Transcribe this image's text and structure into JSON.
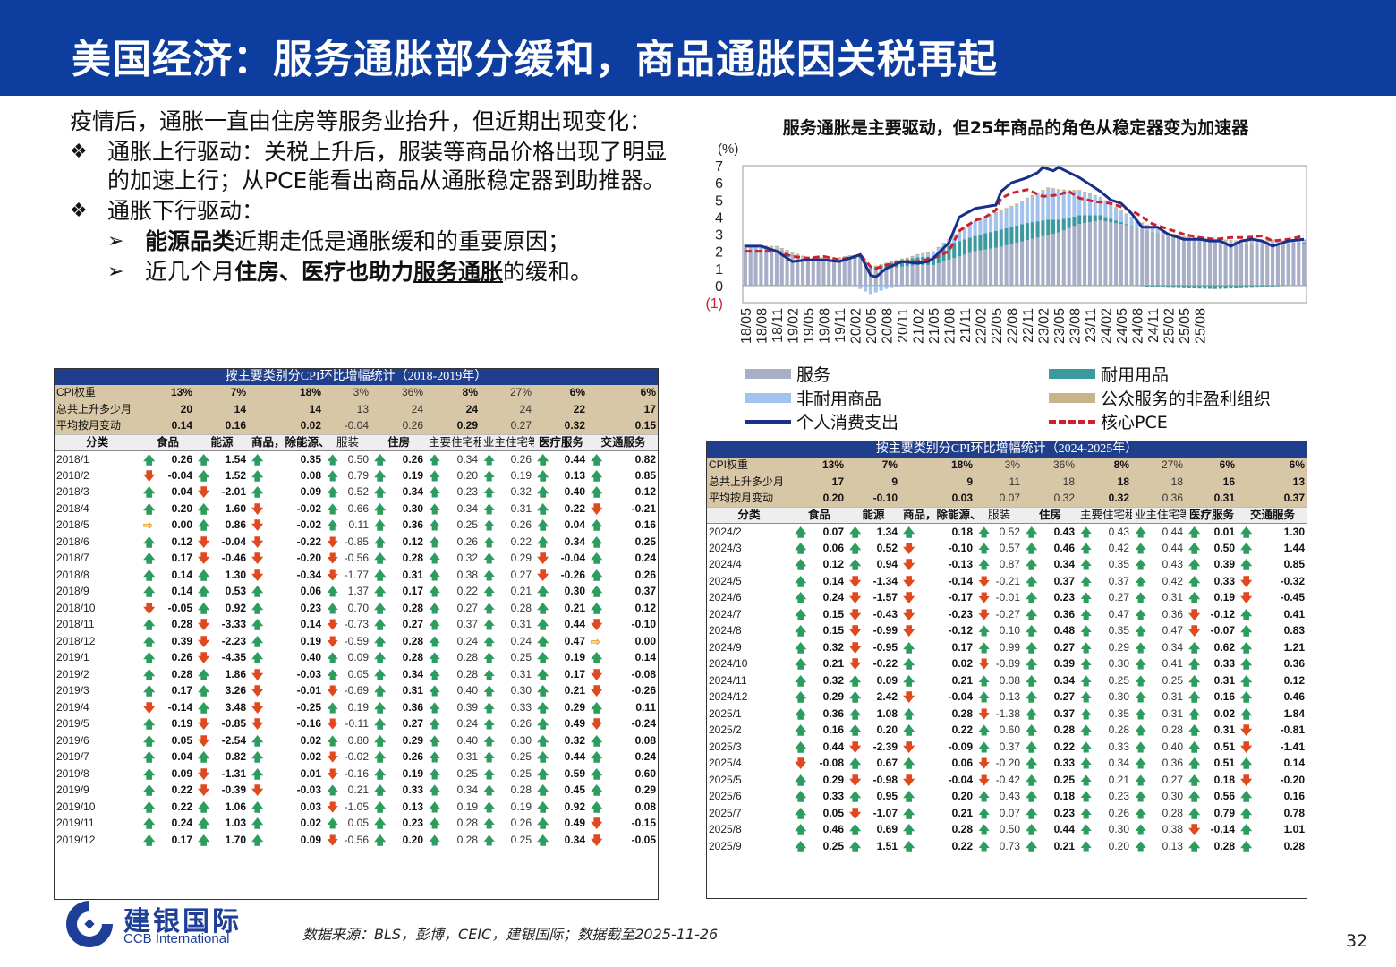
{
  "header": {
    "title": "美国经济：服务通胀部分缓和，商品通胀因关税再起"
  },
  "text": {
    "intro": "疫情后，通胀一直由住房等服务业抬升，但近期出现变化：",
    "b1_mark": "❖",
    "b1": "通胀上行驱动：关税上升后，服装等商品价格出现了明显的加速上行；从PCE能看出商品从通胀稳定器到助推器。",
    "b2_mark": "❖",
    "b2": "通胀下行驱动：",
    "s1_mark": "➢",
    "s1_bold": "能源品类",
    "s1_rest": "近期走低是通胀缓和的重要原因；",
    "s2_mark": "➢",
    "s2_a": "近几个月",
    "s2_bold1": "住房、医疗也助力",
    "s2_bold2": "服务通胀",
    "s2_rest": "的缓和。"
  },
  "chart_data": {
    "type": "bar",
    "title": "服务通胀是主要驱动，但25年商品的角色从稳定器变为加速器",
    "ylabel": "(%)",
    "ylim": [
      -1,
      7
    ],
    "yticks": [
      "7",
      "6",
      "5",
      "4",
      "3",
      "2",
      "1",
      "0",
      "(1)"
    ],
    "x_tick_labels": [
      "18/05",
      "18/08",
      "18/11",
      "19/02",
      "19/05",
      "19/08",
      "19/11",
      "20/02",
      "20/05",
      "20/08",
      "20/11",
      "21/02",
      "21/05",
      "21/08",
      "21/11",
      "22/02",
      "22/05",
      "22/08",
      "22/11",
      "23/02",
      "23/05",
      "23/08",
      "23/11",
      "24/02",
      "24/05",
      "24/08",
      "24/11",
      "25/02",
      "25/05",
      "25/08"
    ],
    "x_start": "2018/05",
    "x_end": "2025/08",
    "series_names": [
      "服务",
      "耐用用品",
      "非耐用商品",
      "公众服务的非盈利组织",
      "个人消费支出",
      "核心PCE"
    ],
    "legend_position": "bottom",
    "colors": {
      "services": "#a7aec6",
      "durables": "#3a9aa0",
      "nondurables": "#a3c3ef",
      "nonprofit": "#c8b48a",
      "pce": "#1a2f8a",
      "core": "#d02030"
    },
    "pce_anchor_values": [
      [
        0,
        2.3
      ],
      [
        3,
        2.3
      ],
      [
        6,
        2.0
      ],
      [
        9,
        1.4
      ],
      [
        12,
        1.5
      ],
      [
        15,
        1.5
      ],
      [
        18,
        1.4
      ],
      [
        21,
        1.7
      ],
      [
        22,
        1.8
      ],
      [
        24,
        0.6
      ],
      [
        25,
        0.5
      ],
      [
        27,
        1.0
      ],
      [
        30,
        1.4
      ],
      [
        33,
        1.3
      ],
      [
        35,
        1.4
      ],
      [
        36,
        1.6
      ],
      [
        39,
        2.5
      ],
      [
        41,
        4.0
      ],
      [
        44,
        4.5
      ],
      [
        46,
        4.6
      ],
      [
        48,
        4.7
      ],
      [
        49,
        5.5
      ],
      [
        51,
        6.0
      ],
      [
        54,
        6.3
      ],
      [
        56,
        6.6
      ],
      [
        57,
        6.9
      ],
      [
        59,
        6.7
      ],
      [
        60,
        6.9
      ],
      [
        62,
        6.6
      ],
      [
        64,
        6.3
      ],
      [
        66,
        5.9
      ],
      [
        68,
        5.5
      ],
      [
        70,
        5.0
      ],
      [
        72,
        4.8
      ],
      [
        74,
        4.2
      ],
      [
        76,
        3.4
      ],
      [
        79,
        3.4
      ],
      [
        81,
        3.0
      ],
      [
        84,
        2.7
      ],
      [
        87,
        2.7
      ],
      [
        89,
        2.6
      ],
      [
        91,
        2.6
      ],
      [
        93,
        2.3
      ],
      [
        95,
        2.6
      ],
      [
        97,
        2.7
      ],
      [
        99,
        2.6
      ],
      [
        101,
        2.3
      ],
      [
        104,
        2.6
      ],
      [
        107,
        2.7
      ]
    ],
    "core_anchor_values": [
      [
        0,
        2.0
      ],
      [
        3,
        2.0
      ],
      [
        6,
        2.0
      ],
      [
        9,
        1.7
      ],
      [
        12,
        1.6
      ],
      [
        15,
        1.7
      ],
      [
        18,
        1.5
      ],
      [
        21,
        1.7
      ],
      [
        22,
        1.8
      ],
      [
        24,
        1.1
      ],
      [
        25,
        1.0
      ],
      [
        27,
        1.2
      ],
      [
        30,
        1.4
      ],
      [
        33,
        1.4
      ],
      [
        36,
        1.6
      ],
      [
        39,
        2.0
      ],
      [
        41,
        3.2
      ],
      [
        44,
        3.8
      ],
      [
        46,
        4.0
      ],
      [
        48,
        4.4
      ],
      [
        49,
        5.1
      ],
      [
        51,
        5.4
      ],
      [
        54,
        5.6
      ],
      [
        57,
        5.2
      ],
      [
        60,
        5.3
      ],
      [
        62,
        5.5
      ],
      [
        64,
        5.1
      ],
      [
        67,
        4.9
      ],
      [
        70,
        4.8
      ],
      [
        72,
        4.6
      ],
      [
        75,
        4.2
      ],
      [
        78,
        3.6
      ],
      [
        81,
        3.3
      ],
      [
        84,
        3.0
      ],
      [
        87,
        2.8
      ],
      [
        90,
        2.7
      ],
      [
        93,
        2.8
      ],
      [
        96,
        2.8
      ],
      [
        99,
        2.9
      ],
      [
        101,
        2.6
      ],
      [
        104,
        2.7
      ],
      [
        107,
        2.9
      ]
    ],
    "services_anchor_values": [
      [
        0,
        2.2
      ],
      [
        6,
        2.1
      ],
      [
        12,
        1.4
      ],
      [
        18,
        1.4
      ],
      [
        22,
        1.6
      ],
      [
        24,
        0.9
      ],
      [
        27,
        1.0
      ],
      [
        33,
        1.2
      ],
      [
        36,
        1.2
      ],
      [
        40,
        1.6
      ],
      [
        44,
        2.0
      ],
      [
        48,
        2.2
      ],
      [
        52,
        2.5
      ],
      [
        56,
        2.8
      ],
      [
        60,
        3.1
      ],
      [
        64,
        3.6
      ],
      [
        68,
        3.8
      ],
      [
        72,
        3.6
      ],
      [
        76,
        3.3
      ],
      [
        80,
        3.0
      ],
      [
        84,
        2.7
      ],
      [
        88,
        2.6
      ],
      [
        92,
        2.5
      ],
      [
        96,
        2.4
      ],
      [
        100,
        2.5
      ],
      [
        107,
        2.4
      ]
    ],
    "durables_anchor_values": [
      [
        0,
        0.0
      ],
      [
        24,
        0.1
      ],
      [
        30,
        0.4
      ],
      [
        36,
        0.5
      ],
      [
        40,
        0.9
      ],
      [
        44,
        0.9
      ],
      [
        48,
        1.0
      ],
      [
        54,
        1.0
      ],
      [
        58,
        0.9
      ],
      [
        62,
        0.6
      ],
      [
        66,
        0.4
      ],
      [
        72,
        0.1
      ],
      [
        78,
        -0.1
      ],
      [
        90,
        -0.2
      ],
      [
        100,
        -0.1
      ],
      [
        107,
        0.1
      ]
    ],
    "nondurables_anchor_values": [
      [
        0,
        0.1
      ],
      [
        20,
        0.1
      ],
      [
        24,
        -0.5
      ],
      [
        27,
        -0.2
      ],
      [
        33,
        0.1
      ],
      [
        40,
        0.4
      ],
      [
        44,
        0.8
      ],
      [
        48,
        1.0
      ],
      [
        52,
        1.2
      ],
      [
        56,
        1.6
      ],
      [
        58,
        1.8
      ],
      [
        60,
        1.7
      ],
      [
        64,
        1.4
      ],
      [
        68,
        1.0
      ],
      [
        72,
        0.6
      ],
      [
        76,
        0.3
      ],
      [
        80,
        0.1
      ],
      [
        90,
        0.1
      ],
      [
        107,
        0.1
      ]
    ]
  },
  "legend": {
    "services": "服务",
    "durables": "耐用用品",
    "nondurables": "非耐用商品",
    "nonprofit": "公众服务的非盈利组织",
    "pce": "个人消费支出",
    "core": "核心PCE"
  },
  "table1": {
    "title": "按主要类别分CPI环比增幅统计（2018-2019年）",
    "summary": [
      [
        "CPI权重",
        "13%",
        "7%",
        "18%",
        "3%",
        "36%",
        "8%",
        "27%",
        "6%",
        "6%"
      ],
      [
        "总共上升多少月",
        "20",
        "14",
        "14",
        "13",
        "24",
        "24",
        "24",
        "22",
        "17"
      ],
      [
        "平均按月变动",
        "0.14",
        "0.16",
        "0.02",
        "-0.04",
        "0.26",
        "0.29",
        "0.27",
        "0.32",
        "0.15"
      ]
    ],
    "headers": [
      "分类",
      "食品",
      "能源",
      "商品，除能源、食品",
      "服装",
      "住房",
      "主要住宅租金",
      "业主住宅等值租金（OER）",
      "医疗服务",
      "交通服务"
    ],
    "rows": [
      [
        "2018/1",
        "0.26",
        "1.54",
        "0.35",
        "0.50",
        "0.26",
        "0.34",
        "0.26",
        "0.44",
        "0.82"
      ],
      [
        "2018/2",
        "-0.04",
        "1.52",
        "0.08",
        "0.79",
        "0.19",
        "0.20",
        "0.19",
        "0.13",
        "0.85"
      ],
      [
        "2018/3",
        "0.04",
        "-2.01",
        "0.09",
        "0.52",
        "0.34",
        "0.23",
        "0.32",
        "0.40",
        "0.12"
      ],
      [
        "2018/4",
        "0.20",
        "1.60",
        "-0.02",
        "0.66",
        "0.30",
        "0.34",
        "0.31",
        "0.22",
        "-0.21"
      ],
      [
        "2018/5",
        "0.00",
        "0.86",
        "-0.02",
        "0.11",
        "0.36",
        "0.25",
        "0.26",
        "0.04",
        "0.16"
      ],
      [
        "2018/6",
        "0.12",
        "-0.04",
        "-0.22",
        "-0.85",
        "0.12",
        "0.26",
        "0.22",
        "0.34",
        "0.25"
      ],
      [
        "2018/7",
        "0.17",
        "-0.46",
        "-0.20",
        "-0.56",
        "0.28",
        "0.32",
        "0.29",
        "-0.04",
        "0.24"
      ],
      [
        "2018/8",
        "0.14",
        "1.30",
        "-0.34",
        "-1.77",
        "0.31",
        "0.38",
        "0.27",
        "-0.26",
        "0.26"
      ],
      [
        "2018/9",
        "0.14",
        "0.53",
        "0.06",
        "1.37",
        "0.17",
        "0.22",
        "0.21",
        "0.30",
        "0.37"
      ],
      [
        "2018/10",
        "-0.05",
        "0.92",
        "0.23",
        "0.70",
        "0.28",
        "0.27",
        "0.28",
        "0.21",
        "0.12"
      ],
      [
        "2018/11",
        "0.28",
        "-3.33",
        "0.14",
        "-0.73",
        "0.27",
        "0.37",
        "0.31",
        "0.44",
        "-0.10"
      ],
      [
        "2018/12",
        "0.39",
        "-2.23",
        "0.19",
        "-0.59",
        "0.28",
        "0.24",
        "0.24",
        "0.47",
        "0.00"
      ],
      [
        "2019/1",
        "0.26",
        "-4.35",
        "0.40",
        "0.09",
        "0.28",
        "0.28",
        "0.25",
        "0.19",
        "0.14"
      ],
      [
        "2019/2",
        "0.28",
        "1.86",
        "-0.03",
        "0.05",
        "0.34",
        "0.28",
        "0.31",
        "0.17",
        "-0.08"
      ],
      [
        "2019/3",
        "0.17",
        "3.26",
        "-0.01",
        "-0.69",
        "0.31",
        "0.40",
        "0.30",
        "0.21",
        "-0.26"
      ],
      [
        "2019/4",
        "-0.14",
        "3.48",
        "-0.25",
        "0.19",
        "0.36",
        "0.39",
        "0.33",
        "0.29",
        "0.11"
      ],
      [
        "2019/5",
        "0.19",
        "-0.85",
        "-0.16",
        "-0.11",
        "0.27",
        "0.24",
        "0.26",
        "0.49",
        "-0.24"
      ],
      [
        "2019/6",
        "0.05",
        "-2.54",
        "0.02",
        "0.80",
        "0.29",
        "0.40",
        "0.30",
        "0.32",
        "0.08"
      ],
      [
        "2019/7",
        "0.04",
        "0.82",
        "0.02",
        "-0.02",
        "0.26",
        "0.31",
        "0.25",
        "0.44",
        "0.24"
      ],
      [
        "2019/8",
        "0.09",
        "-1.31",
        "0.01",
        "-0.16",
        "0.19",
        "0.25",
        "0.25",
        "0.59",
        "0.60"
      ],
      [
        "2019/9",
        "0.22",
        "-0.39",
        "-0.03",
        "0.21",
        "0.33",
        "0.34",
        "0.28",
        "0.45",
        "0.29"
      ],
      [
        "2019/10",
        "0.22",
        "1.06",
        "0.03",
        "-1.05",
        "0.13",
        "0.19",
        "0.19",
        "0.92",
        "0.08"
      ],
      [
        "2019/11",
        "0.24",
        "1.03",
        "0.02",
        "0.05",
        "0.23",
        "0.28",
        "0.26",
        "0.49",
        "-0.15"
      ],
      [
        "2019/12",
        "0.17",
        "1.70",
        "0.09",
        "-0.56",
        "0.20",
        "0.28",
        "0.25",
        "0.34",
        "-0.05"
      ]
    ]
  },
  "table2": {
    "title": "按主要类别分CPI环比增幅统计（2024-2025年）",
    "summary": [
      [
        "CPI权重",
        "13%",
        "7%",
        "18%",
        "3%",
        "36%",
        "8%",
        "27%",
        "6%",
        "6%"
      ],
      [
        "总共上升多少月",
        "17",
        "9",
        "9",
        "11",
        "18",
        "18",
        "18",
        "16",
        "13"
      ],
      [
        "平均按月变动",
        "0.20",
        "-0.10",
        "0.03",
        "0.07",
        "0.32",
        "0.32",
        "0.36",
        "0.31",
        "0.37"
      ]
    ],
    "headers": [
      "分类",
      "食品",
      "能源",
      "商品，除能源、食品",
      "服装",
      "住房",
      "主要住宅租金",
      "业主住宅等值租金（OER）",
      "医疗服务",
      "交通服务"
    ],
    "rows": [
      [
        "2024/2",
        "0.07",
        "1.34",
        "0.18",
        "0.52",
        "0.43",
        "0.43",
        "0.44",
        "0.01",
        "1.30"
      ],
      [
        "2024/3",
        "0.06",
        "0.52",
        "-0.10",
        "0.57",
        "0.46",
        "0.42",
        "0.44",
        "0.50",
        "1.44"
      ],
      [
        "2024/4",
        "0.12",
        "0.94",
        "-0.13",
        "0.87",
        "0.34",
        "0.35",
        "0.43",
        "0.39",
        "0.85"
      ],
      [
        "2024/5",
        "0.14",
        "-1.34",
        "-0.14",
        "-0.21",
        "0.37",
        "0.37",
        "0.42",
        "0.33",
        "-0.32"
      ],
      [
        "2024/6",
        "0.24",
        "-1.57",
        "-0.17",
        "-0.01",
        "0.23",
        "0.27",
        "0.31",
        "0.19",
        "-0.45"
      ],
      [
        "2024/7",
        "0.15",
        "-0.43",
        "-0.23",
        "-0.27",
        "0.36",
        "0.47",
        "0.36",
        "-0.12",
        "0.41"
      ],
      [
        "2024/8",
        "0.15",
        "-0.99",
        "-0.12",
        "0.10",
        "0.48",
        "0.35",
        "0.47",
        "-0.07",
        "0.83"
      ],
      [
        "2024/9",
        "0.32",
        "-0.95",
        "0.17",
        "0.99",
        "0.27",
        "0.29",
        "0.34",
        "0.62",
        "1.21"
      ],
      [
        "2024/10",
        "0.21",
        "-0.22",
        "0.02",
        "-0.89",
        "0.39",
        "0.30",
        "0.41",
        "0.33",
        "0.36"
      ],
      [
        "2024/11",
        "0.32",
        "0.09",
        "0.21",
        "0.08",
        "0.34",
        "0.25",
        "0.25",
        "0.31",
        "0.12"
      ],
      [
        "2024/12",
        "0.29",
        "2.42",
        "-0.04",
        "0.13",
        "0.27",
        "0.30",
        "0.31",
        "0.16",
        "0.46"
      ],
      [
        "2025/1",
        "0.36",
        "1.08",
        "0.28",
        "-1.38",
        "0.37",
        "0.35",
        "0.31",
        "0.02",
        "1.84"
      ],
      [
        "2025/2",
        "0.16",
        "0.20",
        "0.22",
        "0.60",
        "0.28",
        "0.28",
        "0.28",
        "0.31",
        "-0.81"
      ],
      [
        "2025/3",
        "0.44",
        "-2.39",
        "-0.09",
        "0.37",
        "0.22",
        "0.33",
        "0.40",
        "0.51",
        "-1.41"
      ],
      [
        "2025/4",
        "-0.08",
        "0.67",
        "0.06",
        "-0.20",
        "0.33",
        "0.34",
        "0.36",
        "0.51",
        "0.14"
      ],
      [
        "2025/5",
        "0.29",
        "-0.98",
        "-0.04",
        "-0.42",
        "0.25",
        "0.21",
        "0.27",
        "0.18",
        "-0.20"
      ],
      [
        "2025/6",
        "0.33",
        "0.95",
        "0.20",
        "0.43",
        "0.18",
        "0.23",
        "0.30",
        "0.56",
        "0.16"
      ],
      [
        "2025/7",
        "0.05",
        "-1.07",
        "0.21",
        "0.07",
        "0.23",
        "0.26",
        "0.28",
        "0.79",
        "0.78"
      ],
      [
        "2025/8",
        "0.46",
        "0.69",
        "0.28",
        "0.50",
        "0.44",
        "0.30",
        "0.38",
        "-0.14",
        "1.01"
      ],
      [
        "2025/9",
        "0.25",
        "1.51",
        "0.22",
        "0.73",
        "0.21",
        "0.20",
        "0.13",
        "0.28",
        "0.28"
      ]
    ]
  },
  "footer": {
    "logo_cn": "建银国际",
    "logo_en": "CCB International",
    "source": "数据来源：BLS，彭博，CEIC，建银国际；数据截至2025-11-26",
    "page_number": "32"
  }
}
